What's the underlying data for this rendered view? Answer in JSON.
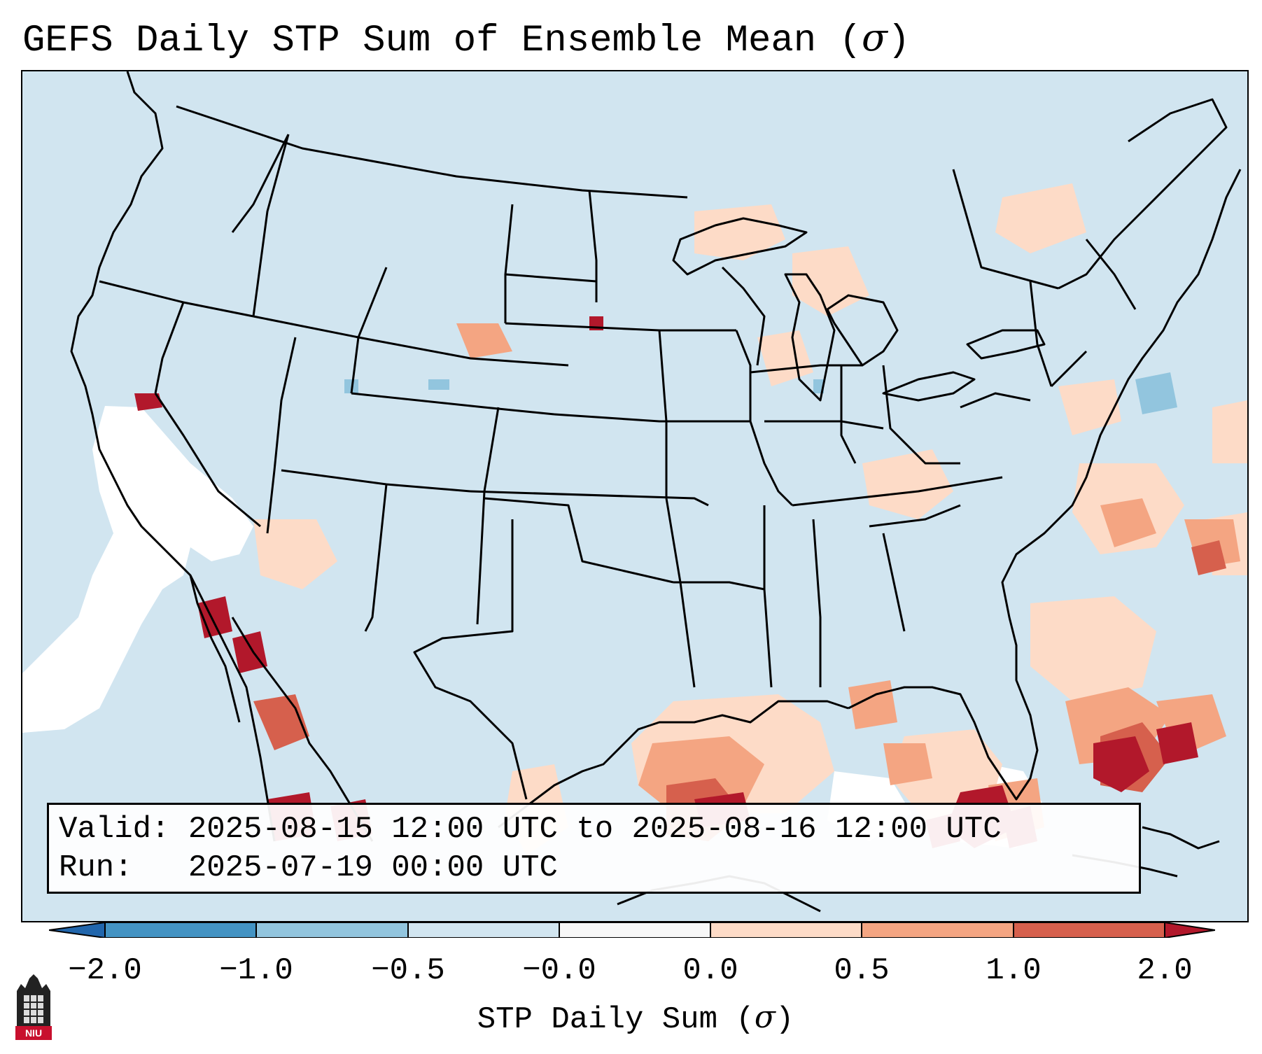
{
  "title": {
    "text": "GEFS Daily STP Sum of Ensemble Mean (",
    "sigma": "σ",
    "close": ")"
  },
  "info": {
    "valid_line": "Valid: 2025-08-15 12:00 UTC to 2025-08-16 12:00 UTC",
    "run_line": "Run:   2025-07-19 00:00 UTC"
  },
  "colorbar": {
    "label_text": "STP Daily Sum (",
    "label_sigma": "σ",
    "label_close": ")",
    "ticks": [
      "−2.0",
      "−1.0",
      "−0.5",
      "−0.0",
      "0.0",
      "0.5",
      "1.0",
      "2.0"
    ],
    "colors": [
      "#2166ac",
      "#4393c3",
      "#92c5de",
      "#d1e5f0",
      "#f7f7f7",
      "#fddbc7",
      "#f4a582",
      "#d6604d",
      "#b2182b"
    ]
  },
  "logo": {
    "text": "NIU"
  }
}
